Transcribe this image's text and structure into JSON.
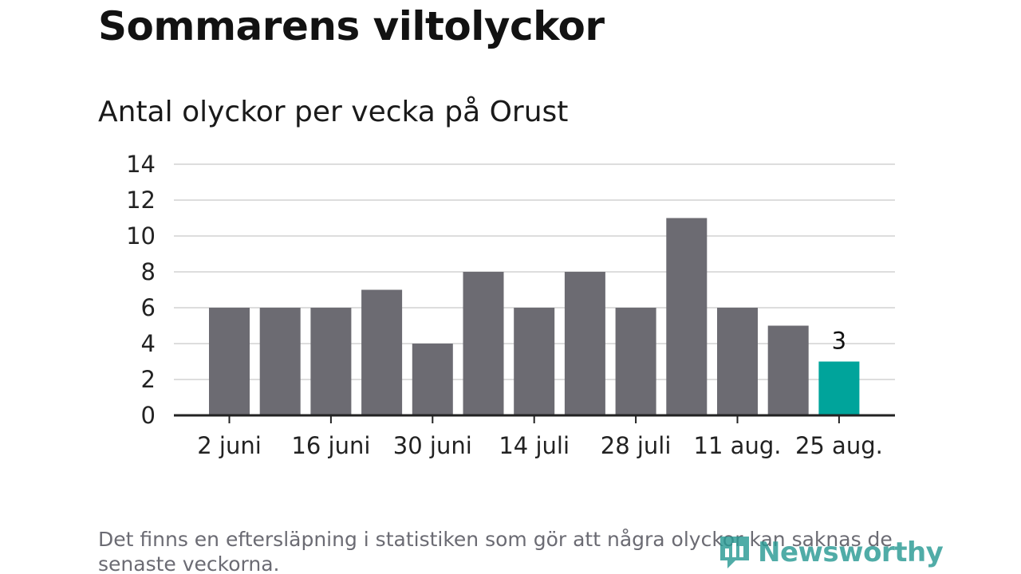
{
  "title": "Sommarens viltolyckor",
  "subtitle": "Antal olyckor per vecka på Orust",
  "footnote": "Det finns en eftersläpning i statistiken som gör att några olyckor kan saknas de senaste veckorna.",
  "logo_text": "Newsworthy",
  "chart_data": {
    "type": "bar",
    "title": "Sommarens viltolyckor",
    "subtitle": "Antal olyckor per vecka på Orust",
    "xlabel": "",
    "ylabel": "",
    "ylim": [
      0,
      14
    ],
    "yticks": [
      0,
      2,
      4,
      6,
      8,
      10,
      12,
      14
    ],
    "x_tick_labels": [
      "2 juni",
      "16 juni",
      "30 juni",
      "14 juli",
      "28 juli",
      "11 aug.",
      "25 aug."
    ],
    "x_tick_positions": [
      0,
      2,
      4,
      6,
      8,
      10,
      12
    ],
    "values": [
      6,
      6,
      6,
      7,
      4,
      8,
      6,
      8,
      6,
      11,
      6,
      5,
      3
    ],
    "highlight_index": 12,
    "highlight_label": "3",
    "grid": true,
    "colors": {
      "bar": "#6c6b72",
      "highlight": "#00a49b",
      "grid": "#dddddd",
      "axis": "#222222"
    }
  }
}
